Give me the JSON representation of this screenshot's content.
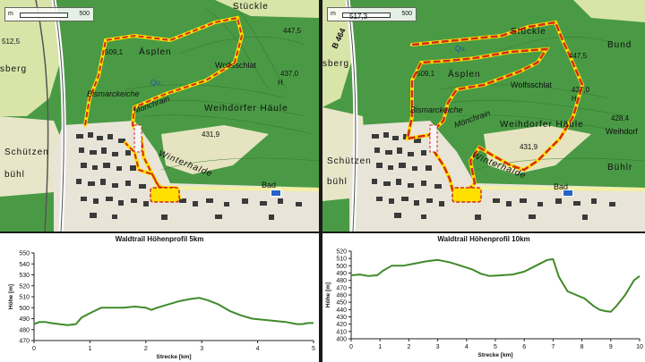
{
  "maps": [
    {
      "scale": {
        "unit": "m",
        "value": "500"
      },
      "labels": {
        "stuckle": "Stückle",
        "h4475": "447,5",
        "h5125": "512,5",
        "berg": "sberg",
        "h5091": "509,1",
        "asplen": "Äsplen",
        "wolfsschlat": "Wolfsschlat",
        "h4370": "437,0",
        "H": "H",
        "bismarckeiche": "Bismarckeiche",
        "monchrain": "Mönchrain",
        "weihdorfer": "Weihdorfer Häule",
        "h4319": "431,9",
        "schutzen": "Schützen",
        "buhl": "bühl",
        "winterhalde": "Winterhalde",
        "bad": "Bad",
        "qu": "Qu."
      }
    },
    {
      "scale": {
        "unit": "m",
        "value": "500"
      },
      "road": "B 464",
      "labels": {
        "h5173": "517,3",
        "stuckle": "Stückle",
        "bund": "Bund",
        "h4475": "447,5",
        "berg": "sberg",
        "h5091": "509,1",
        "asplen": "Äsplen",
        "wolfsschlat": "Wolfsschlat",
        "h4370": "437,0",
        "H": "H",
        "bismarckeiche": "Bismarckeiche",
        "monchrain": "Mönchrain",
        "weihdorfer": "Weihdorfer Häule",
        "weihdorf": "Weihdorf",
        "h4284": "428,4",
        "h4319": "431,9",
        "schutzen": "Schützen",
        "buhl": "bühl",
        "buhlr": "Bühlr",
        "winterhalde": "Winterhalde",
        "bad": "Bad",
        "qu": "Qu."
      }
    }
  ],
  "chart_data": [
    {
      "type": "line",
      "title": "Waldtrail Höhenprofil 5km",
      "xlabel": "Strecke [km]",
      "ylabel": "Höhe [m]",
      "xlim": [
        0,
        5
      ],
      "ylim": [
        470,
        550
      ],
      "xticks": [
        0,
        1,
        2,
        3,
        4,
        5
      ],
      "yticks": [
        470,
        480,
        490,
        500,
        510,
        520,
        530,
        540,
        550
      ],
      "color": "#3f8a2a",
      "grid": false,
      "series": [
        {
          "x": [
            0,
            0.1,
            0.2,
            0.3,
            0.45,
            0.6,
            0.75,
            0.85,
            1.0,
            1.2,
            1.4,
            1.6,
            1.8,
            2.0,
            2.1,
            2.2,
            2.4,
            2.6,
            2.8,
            2.95,
            3.1,
            3.3,
            3.5,
            3.7,
            3.9,
            4.1,
            4.3,
            4.5,
            4.7,
            4.8,
            4.9,
            5.0
          ],
          "y": [
            485,
            487,
            487,
            486,
            485,
            484,
            485,
            491,
            495,
            500,
            500,
            500,
            501,
            500,
            498,
            500,
            503,
            506,
            508,
            509,
            507,
            503,
            497,
            493,
            490,
            489,
            488,
            487,
            485,
            485,
            486,
            486
          ]
        }
      ]
    },
    {
      "type": "line",
      "title": "Waldtrail Höhenprofil 10km",
      "xlabel": "Strecke [km]",
      "ylabel": "Höhe [m]",
      "xlim": [
        0,
        10
      ],
      "ylim": [
        400,
        520
      ],
      "xticks": [
        0,
        1,
        2,
        3,
        4,
        5,
        6,
        7,
        8,
        9,
        10
      ],
      "yticks": [
        400,
        410,
        420,
        430,
        440,
        450,
        460,
        470,
        480,
        490,
        500,
        510,
        520
      ],
      "color": "#3f8a2a",
      "grid": false,
      "series": [
        {
          "x": [
            0,
            0.3,
            0.6,
            0.9,
            1.1,
            1.4,
            1.8,
            2.2,
            2.6,
            3.0,
            3.4,
            3.8,
            4.2,
            4.5,
            4.8,
            5.2,
            5.6,
            6.0,
            6.4,
            6.8,
            7.0,
            7.2,
            7.5,
            7.8,
            8.1,
            8.4,
            8.6,
            8.8,
            9.0,
            9.2,
            9.5,
            9.8,
            10.0
          ],
          "y": [
            487,
            488,
            486,
            487,
            493,
            500,
            500,
            503,
            506,
            508,
            505,
            500,
            495,
            489,
            486,
            487,
            488,
            492,
            500,
            508,
            509,
            485,
            465,
            460,
            455,
            445,
            440,
            438,
            437,
            445,
            460,
            480,
            486
          ]
        }
      ]
    }
  ]
}
